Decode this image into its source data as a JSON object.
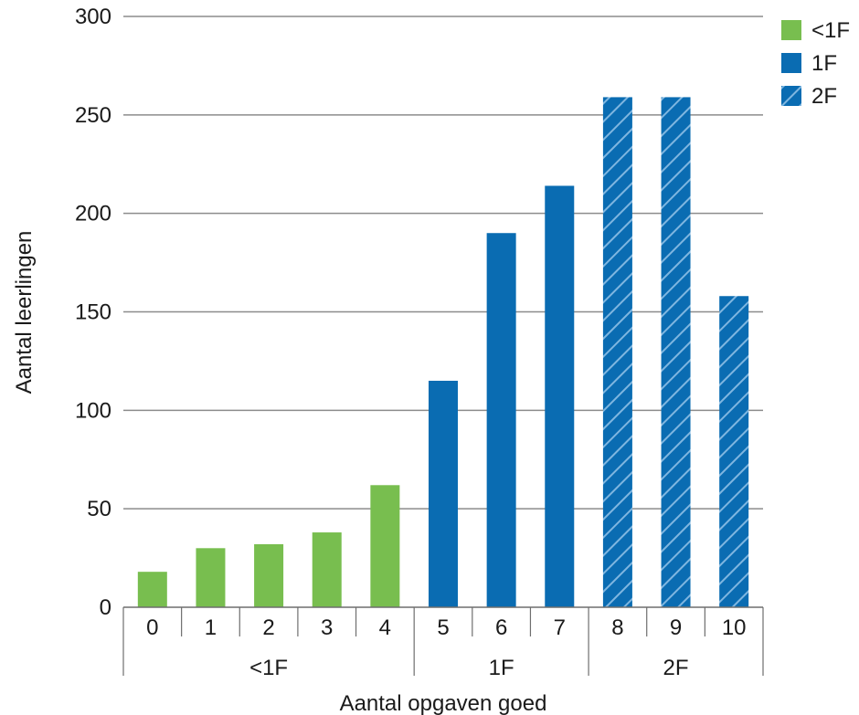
{
  "chart_data": {
    "type": "bar",
    "xlabel": "Aantal opgaven goed",
    "ylabel": "Aantal leerlingen",
    "ylim": [
      0,
      300
    ],
    "yticks": [
      0,
      50,
      100,
      150,
      200,
      250,
      300
    ],
    "grid": true,
    "categories": [
      "0",
      "1",
      "2",
      "3",
      "4",
      "5",
      "6",
      "7",
      "8",
      "9",
      "10"
    ],
    "values": [
      18,
      30,
      32,
      38,
      62,
      115,
      190,
      214,
      259,
      259,
      158
    ],
    "levels": [
      "<1F",
      "<1F",
      "<1F",
      "<1F",
      "<1F",
      "1F",
      "1F",
      "1F",
      "2F",
      "2F",
      "2F"
    ],
    "groups": [
      {
        "label": "<1F",
        "categories": [
          "0",
          "1",
          "2",
          "3",
          "4"
        ]
      },
      {
        "label": "1F",
        "categories": [
          "5",
          "6",
          "7"
        ]
      },
      {
        "label": "2F",
        "categories": [
          "8",
          "9",
          "10"
        ]
      }
    ],
    "legend": [
      {
        "label": "<1F",
        "color": "#78be4f",
        "pattern": "solid"
      },
      {
        "label": "1F",
        "color": "#0a6cb2",
        "pattern": "solid"
      },
      {
        "label": "2F",
        "color": "#0a6cb2",
        "pattern": "hatched"
      }
    ],
    "legend_position": "top-right",
    "colors": {
      "green": "#78be4f",
      "blue": "#0a6cb2",
      "hatch": "#7fb6e0",
      "grid": "#8c8c8c",
      "axis": "#6e6e6e"
    }
  }
}
